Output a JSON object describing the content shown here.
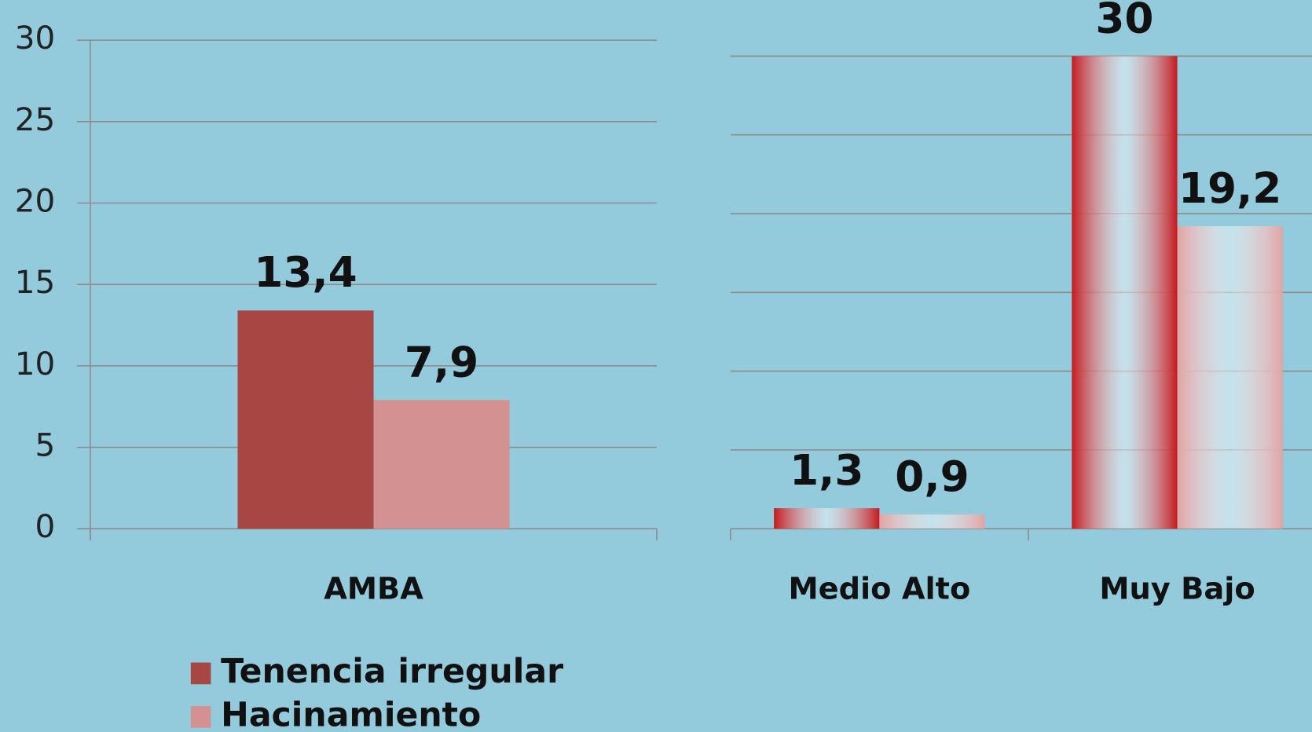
{
  "chart_data": [
    {
      "type": "bar",
      "categories": [
        "AMBA"
      ],
      "series": [
        {
          "name": "Tenencia irregular",
          "color": "#a84644",
          "values": [
            13.4
          ],
          "value_labels": [
            "13,4"
          ]
        },
        {
          "name": "Hacinamiento",
          "color": "#d39291",
          "values": [
            7.9
          ],
          "value_labels": [
            "7,9"
          ]
        }
      ],
      "ylim": [
        0,
        30
      ],
      "yticks": [
        0,
        5,
        10,
        15,
        20,
        25,
        30
      ],
      "grid": true,
      "legend": "bottom-left"
    },
    {
      "type": "bar",
      "categories": [
        "Medio Alto",
        "Muy Bajo"
      ],
      "series": [
        {
          "color": "#c41a1f",
          "values": [
            1.3,
            30
          ],
          "value_labels": [
            "1,3",
            "30"
          ],
          "gradient": true
        },
        {
          "color": "#e0a3a3",
          "values": [
            0.9,
            19.2
          ],
          "value_labels": [
            "0,9",
            "19,2"
          ],
          "gradient": true
        }
      ],
      "ylim": [
        0,
        30
      ],
      "yticks": [
        0,
        5,
        10,
        15,
        20,
        25,
        30
      ],
      "grid": true,
      "tick_labels": false
    }
  ]
}
